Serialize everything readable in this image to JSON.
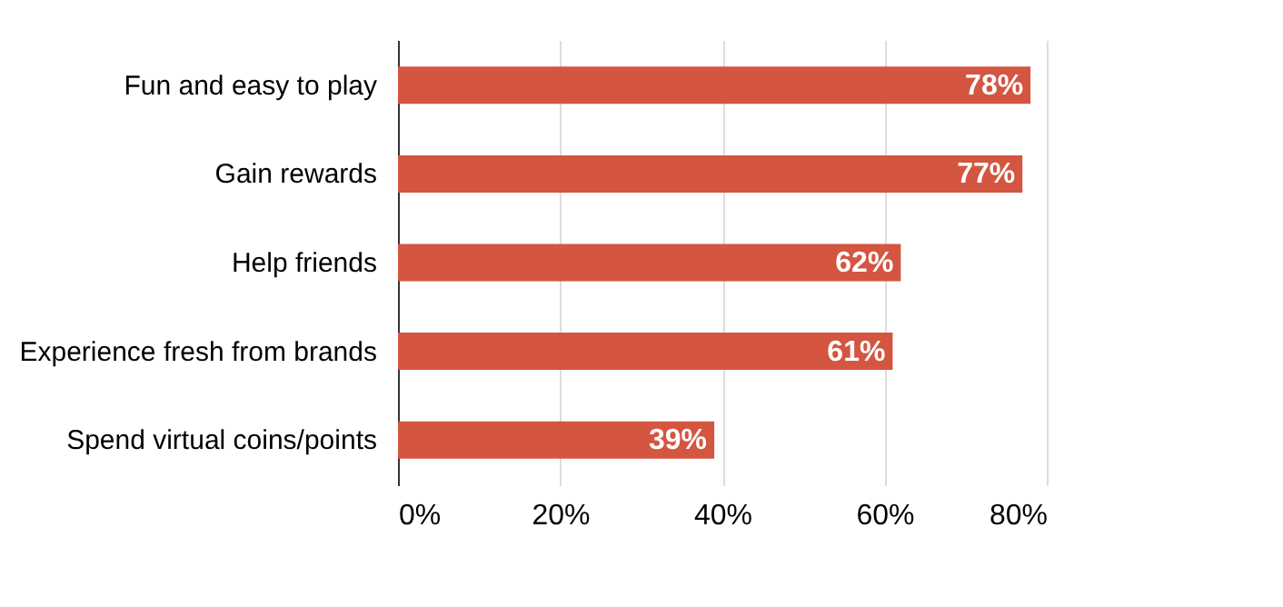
{
  "chart_data": {
    "type": "bar",
    "orientation": "horizontal",
    "categories": [
      "Fun and easy to play",
      "Gain rewards",
      "Help friends",
      "Experience fresh from brands",
      "Spend virtual coins/points"
    ],
    "values": [
      78,
      77,
      62,
      61,
      39
    ],
    "value_labels": [
      "78%",
      "77%",
      "62%",
      "61%",
      "39%"
    ],
    "color": "#d45540",
    "xlim": [
      0,
      80
    ],
    "xticks": [
      {
        "value": 0,
        "label": "0%"
      },
      {
        "value": 20,
        "label": "20%"
      },
      {
        "value": 40,
        "label": "40%"
      },
      {
        "value": 60,
        "label": "60%"
      },
      {
        "value": 80,
        "label": "80%"
      }
    ],
    "grid": "x"
  }
}
